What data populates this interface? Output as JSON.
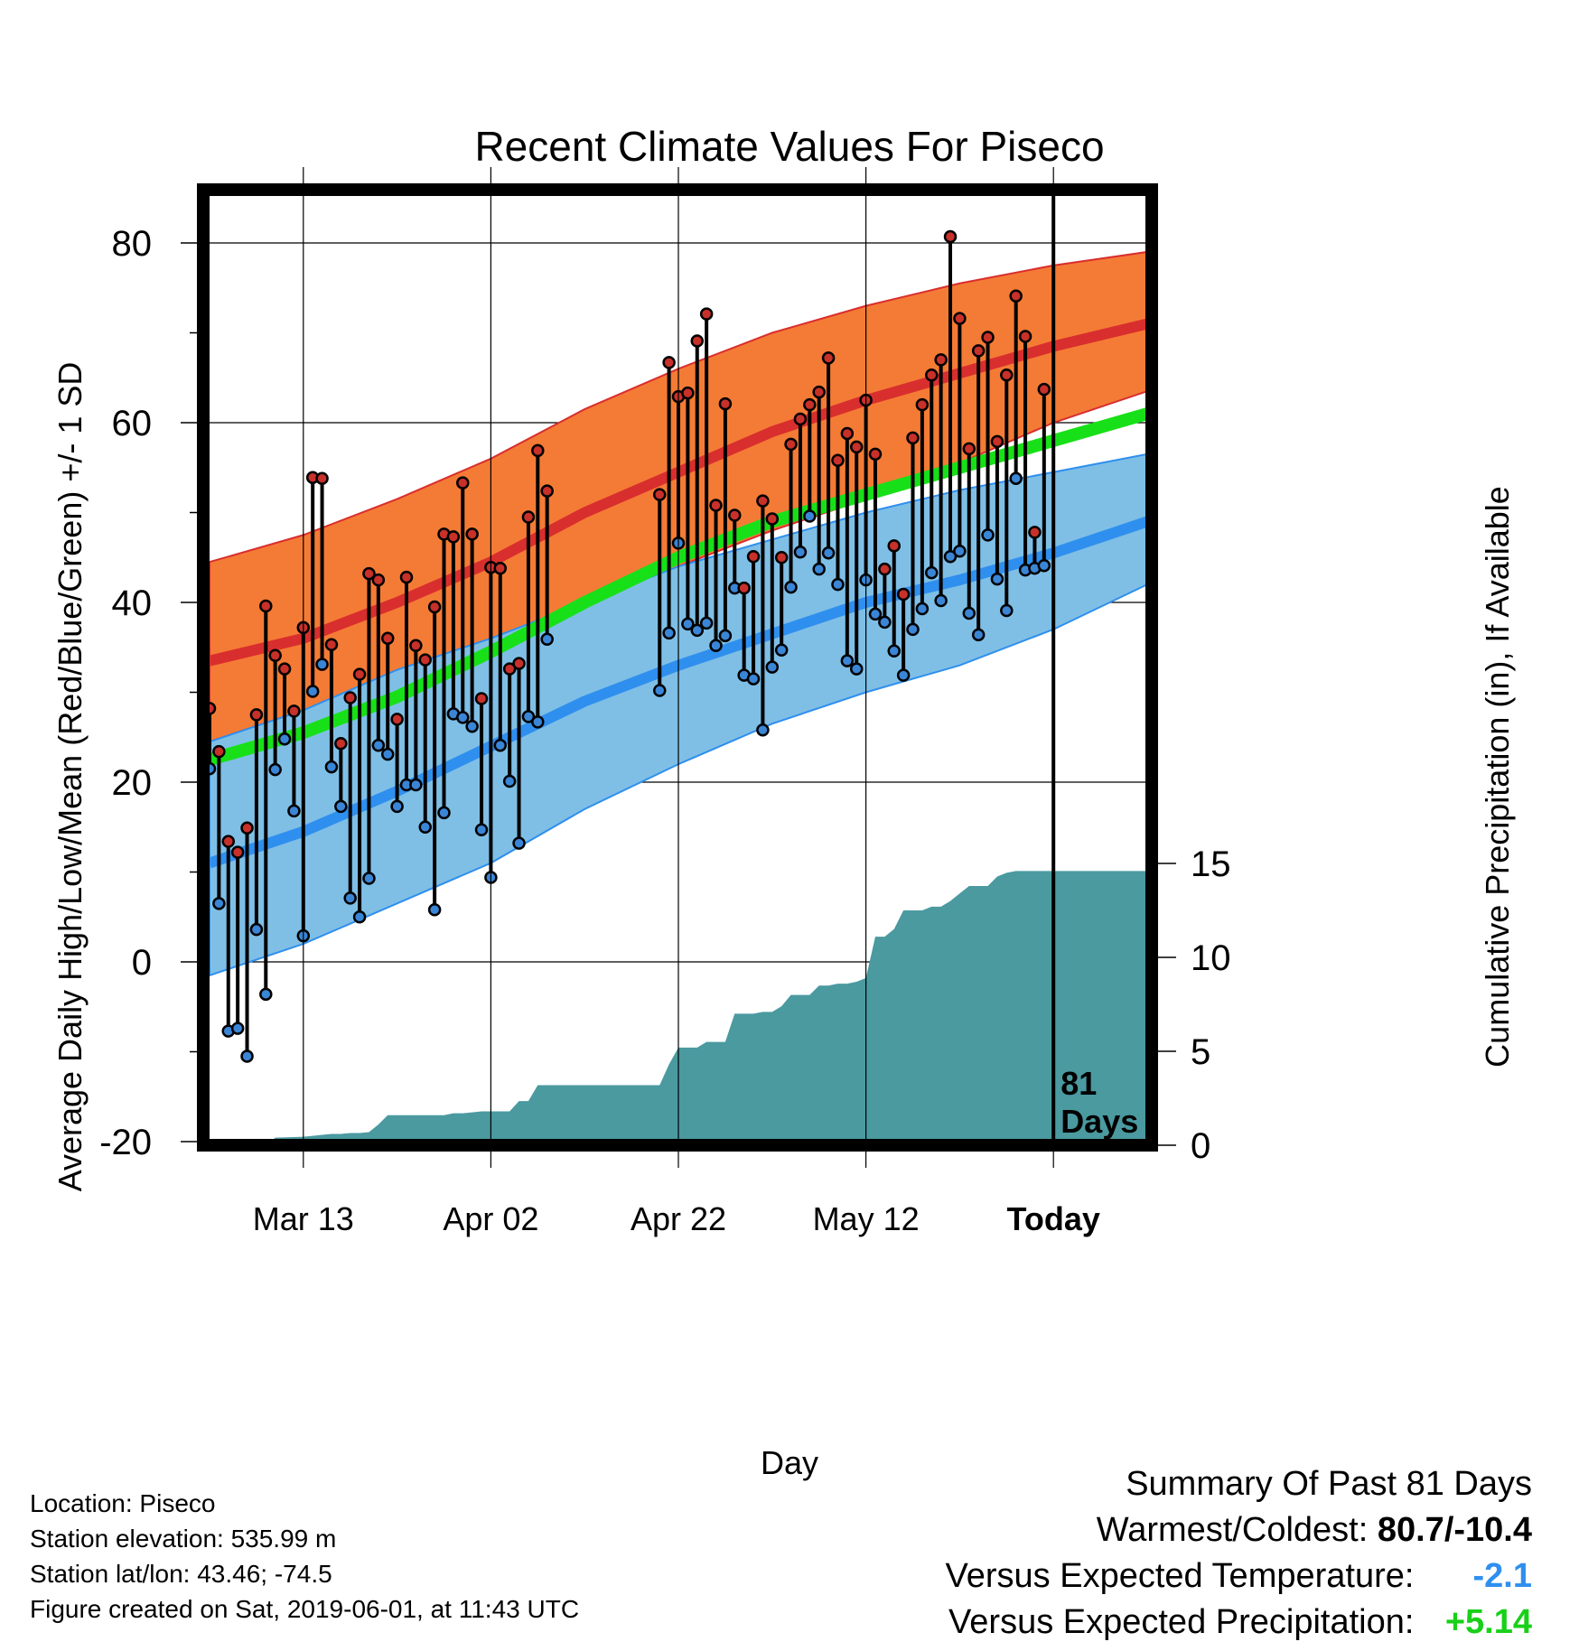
{
  "chart_data": {
    "type": "line",
    "title": "Recent Climate Values For Piseco",
    "xlabel": "Day",
    "ylabel": "Average Daily High/Low/Mean (Red/Blue/Green) +/- 1 SD",
    "y2label": "Cumulative Precipitation (in), If Available",
    "ylim": [
      -20,
      88
    ],
    "y2lim": [
      0,
      30
    ],
    "x_range_days": [
      0,
      81
    ],
    "x_tick_labels": [
      {
        "day": 10,
        "label": "Mar 13"
      },
      {
        "day": 30,
        "label": "Apr 02"
      },
      {
        "day": 50,
        "label": "Apr 22"
      },
      {
        "day": 70,
        "label": "May 12"
      },
      {
        "day": 90,
        "label": "Today"
      }
    ],
    "y_tick_labels": [
      "-20",
      "0",
      "20",
      "40",
      "60",
      "80"
    ],
    "y2_tick_labels": [
      "0",
      "5",
      "10",
      "15"
    ],
    "today_marker_label": "81 Days",
    "grid": true,
    "colors": {
      "high_band": "#f47b35",
      "high_mean": "#d92e2e",
      "low_band": "#7fbfe6",
      "low_mean": "#2f8fee",
      "mean_line": "#18e018",
      "precip": "#4a9aa0",
      "high_marker": "#c8302a",
      "low_marker": "#3a85d6"
    },
    "normals": {
      "days": [
        0,
        10,
        20,
        30,
        40,
        50,
        60,
        70,
        80,
        90,
        100
      ],
      "high_mean": [
        33.5,
        36,
        40,
        44.5,
        50,
        54.5,
        59,
        62.5,
        65.5,
        68.5,
        71
      ],
      "high_upper": [
        44.5,
        47.5,
        51.5,
        56,
        61.5,
        66,
        70,
        73,
        75.5,
        77.5,
        79
      ],
      "high_lower": [
        24.5,
        28,
        31,
        34.5,
        39.5,
        44,
        48,
        51.5,
        55.5,
        60,
        63.5
      ],
      "low_mean": [
        11,
        14.5,
        19,
        24,
        29,
        33,
        36.5,
        40,
        42.5,
        45.5,
        49
      ],
      "low_upper": [
        24.5,
        28,
        32.5,
        36,
        40,
        44,
        47,
        50,
        52.5,
        54.5,
        56.5
      ],
      "low_lower": [
        -1.5,
        2,
        6.5,
        11,
        17,
        22,
        26.5,
        30,
        33,
        37,
        42
      ],
      "mean": [
        22.5,
        25.5,
        29.5,
        34.5,
        40,
        45,
        49,
        52,
        55,
        58,
        61
      ]
    },
    "series": [
      {
        "name": "High",
        "days": [
          0,
          1,
          2,
          3,
          4,
          5,
          6,
          7,
          8,
          9,
          10,
          11,
          12,
          13,
          14,
          15,
          16,
          17,
          18,
          19,
          20,
          21,
          22,
          23,
          24,
          25,
          26,
          27,
          28,
          29,
          30,
          31,
          32,
          33,
          34,
          35,
          36,
          37,
          38,
          39,
          40,
          41,
          42,
          43,
          44,
          45,
          46,
          47,
          48,
          49,
          50,
          51,
          52,
          53,
          54,
          55,
          56,
          57,
          58,
          59,
          60,
          61,
          62,
          63,
          64,
          65,
          66,
          67,
          68,
          69,
          70,
          71,
          72,
          73,
          74,
          75,
          76,
          77,
          78,
          79,
          80,
          81,
          82,
          83,
          84,
          85,
          86,
          87,
          88,
          89
        ],
        "values": [
          28.2,
          23.4,
          13.4,
          12.2,
          14.9,
          27.5,
          39.6,
          34.1,
          32.6,
          27.9,
          37.2,
          53.9,
          53.8,
          35.3,
          24.3,
          29.4,
          32.0,
          43.2,
          42.5,
          36.0,
          27.0,
          42.8,
          35.2,
          33.6,
          39.5,
          47.6,
          47.3,
          53.3,
          47.6,
          29.3,
          43.9,
          43.8,
          32.6,
          33.2,
          49.5,
          56.9,
          52.4,
          null,
          null,
          null,
          null,
          null,
          null,
          null,
          null,
          null,
          null,
          null,
          52.0,
          66.7,
          62.9,
          63.3,
          69.1,
          72.1,
          50.8,
          62.1,
          49.7,
          41.6,
          45.1,
          51.3,
          49.3,
          45.0,
          57.6,
          60.4,
          62.0,
          63.4,
          67.2,
          55.8,
          58.8,
          57.3,
          62.5,
          56.5,
          43.7,
          46.3,
          40.9,
          58.3,
          62.0,
          65.3,
          67.0,
          80.7,
          71.6,
          57.1,
          68.0,
          69.5,
          57.9,
          65.3,
          74.1,
          69.6,
          47.8,
          63.7
        ]
      },
      {
        "name": "Low",
        "days": [
          0,
          1,
          2,
          3,
          4,
          5,
          6,
          7,
          8,
          9,
          10,
          11,
          12,
          13,
          14,
          15,
          16,
          17,
          18,
          19,
          20,
          21,
          22,
          23,
          24,
          25,
          26,
          27,
          28,
          29,
          30,
          31,
          32,
          33,
          34,
          35,
          36,
          37,
          38,
          39,
          40,
          41,
          42,
          43,
          44,
          45,
          46,
          47,
          48,
          49,
          50,
          51,
          52,
          53,
          54,
          55,
          56,
          57,
          58,
          59,
          60,
          61,
          62,
          63,
          64,
          65,
          66,
          67,
          68,
          69,
          70,
          71,
          72,
          73,
          74,
          75,
          76,
          77,
          78,
          79,
          80,
          81,
          82,
          83,
          84,
          85,
          86,
          87,
          88,
          89
        ],
        "values": [
          21.5,
          6.5,
          -7.7,
          -7.4,
          -10.5,
          3.6,
          -3.6,
          21.4,
          24.8,
          16.8,
          2.9,
          30.1,
          33.1,
          21.7,
          17.3,
          7.1,
          5.0,
          9.3,
          24.1,
          23.1,
          17.3,
          19.7,
          19.7,
          15.0,
          5.8,
          16.6,
          27.6,
          27.2,
          26.2,
          14.7,
          9.4,
          24.1,
          20.1,
          13.2,
          27.3,
          26.7,
          35.9,
          null,
          null,
          null,
          null,
          null,
          null,
          null,
          null,
          null,
          null,
          null,
          30.2,
          36.6,
          46.6,
          37.6,
          36.9,
          37.7,
          35.2,
          36.3,
          41.6,
          31.9,
          31.5,
          25.8,
          32.8,
          34.7,
          41.7,
          45.6,
          49.6,
          43.7,
          45.5,
          42.0,
          33.5,
          32.6,
          42.5,
          38.7,
          37.8,
          34.6,
          31.9,
          37.0,
          39.3,
          43.3,
          40.2,
          45.1,
          45.7,
          38.8,
          36.4,
          47.5,
          42.6,
          39.1,
          53.8,
          43.6,
          43.8,
          44.1
        ]
      }
    ],
    "precip_cumulative": {
      "days": [
        0,
        6,
        7,
        10,
        11,
        12,
        13,
        14,
        15,
        16,
        17,
        18,
        19,
        20,
        25,
        26,
        27,
        28,
        29,
        30,
        31,
        32,
        33,
        34,
        35,
        36,
        37,
        38,
        39,
        40,
        41,
        42,
        43,
        44,
        45,
        46,
        47,
        48,
        49,
        50,
        51,
        52,
        53,
        54,
        55,
        56,
        57,
        58,
        59,
        60,
        61,
        62,
        63,
        64,
        65,
        66,
        67,
        68,
        69,
        70,
        71,
        72,
        73,
        74,
        75,
        76,
        77,
        78,
        79,
        80,
        81,
        82,
        83,
        84,
        85,
        86,
        87,
        88,
        89,
        100
      ],
      "values": [
        0,
        0,
        0.4,
        0.45,
        0.5,
        0.55,
        0.6,
        0.6,
        0.65,
        0.65,
        0.7,
        1.1,
        1.6,
        1.6,
        1.6,
        1.7,
        1.7,
        1.75,
        1.8,
        1.8,
        1.8,
        1.8,
        2.35,
        2.35,
        3.2,
        3.2,
        3.2,
        3.2,
        3.2,
        3.2,
        3.2,
        3.2,
        3.2,
        3.2,
        3.2,
        3.2,
        3.2,
        3.2,
        4.3,
        5.2,
        5.2,
        5.2,
        5.5,
        5.5,
        5.5,
        7.0,
        7.0,
        7.0,
        7.1,
        7.1,
        7.4,
        8.0,
        8.0,
        8.0,
        8.5,
        8.5,
        8.6,
        8.6,
        8.7,
        8.9,
        11.1,
        11.1,
        11.5,
        12.5,
        12.5,
        12.5,
        12.7,
        12.7,
        13.0,
        13.4,
        13.8,
        13.8,
        13.8,
        14.3,
        14.5,
        14.6,
        14.6,
        14.6,
        14.6,
        14.6
      ]
    }
  },
  "info": {
    "location": "Location: Piseco",
    "elevation": "Station elevation: 535.99 m",
    "latlon": "Station lat/lon: 43.46; -74.5",
    "created": "Figure created on Sat, 2019-06-01, at 11:43 UTC"
  },
  "summary": {
    "title": "Summary Of Past 81 Days",
    "warmest_label": "Warmest/Coldest:",
    "warmest_value": "80.7/-10.4",
    "temp_label": "Versus Expected Temperature:",
    "temp_value": "-2.1",
    "temp_color": "#2f8fee",
    "precip_label": "Versus Expected Precipitation:",
    "precip_value": "+5.14",
    "precip_color": "#18d018"
  }
}
